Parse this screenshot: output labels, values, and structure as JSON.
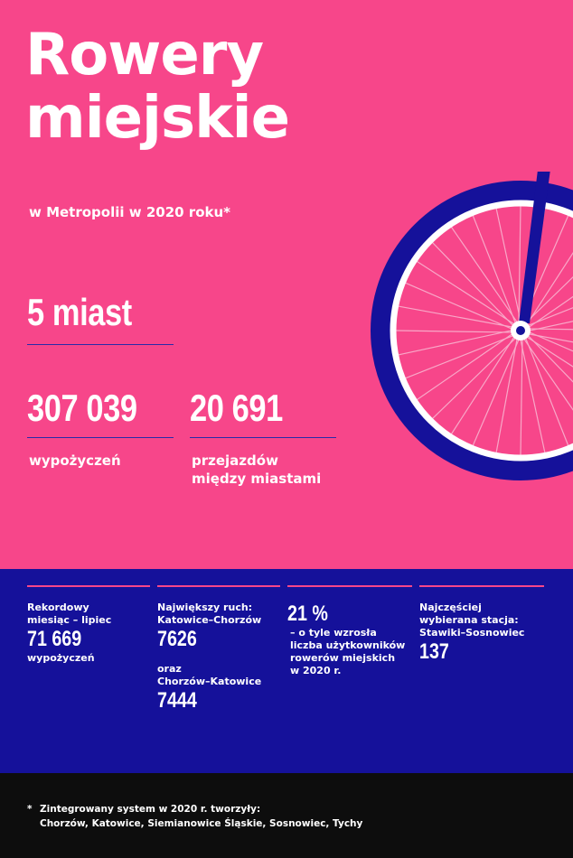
{
  "header": {
    "title_line1": "Rowery",
    "title_line2": "miejskie",
    "subtitle": "w Metropolii w 2020 roku*"
  },
  "stats": {
    "cities": "5 miast",
    "rentals_value": "307 039",
    "rentals_label": "wypożyczeń",
    "intercity_value": "20 691",
    "intercity_label_line1": "przejazdów",
    "intercity_label_line2": "między miastami"
  },
  "facts": [
    {
      "pre1": "Rekordowy",
      "pre2": "miesiąc – lipiec",
      "value": "71 669",
      "post": "wypożyczeń"
    },
    {
      "pre1": "Największy ruch:",
      "pre2": "Katowice–Chorzów",
      "value": "7626",
      "mid1": "oraz",
      "mid2": "Chorzów–Katowice",
      "value2": "7444"
    },
    {
      "value": "21 %",
      "post1": "– o tyle wzrosła",
      "post2": "liczba użytkowników",
      "post3": "rowerów miejskich",
      "post4": "w 2020 r."
    },
    {
      "pre1": "Najczęściej",
      "pre2": "wybierana stacja:",
      "pre3": "Stawiki–Sosnowiec",
      "value": "137"
    }
  ],
  "footnote": {
    "star": "*",
    "line1": "Zintegrowany system w 2020 r. tworzyły:",
    "line2": "Chorzów, Katowice, Siemianowice Śląskie, Sosnowiec, Tychy"
  },
  "colors": {
    "pink": "#f7468a",
    "navy": "#15119a",
    "black": "#0d0d0d"
  },
  "icons": {
    "wheel": "bicycle-wheel-icon"
  }
}
